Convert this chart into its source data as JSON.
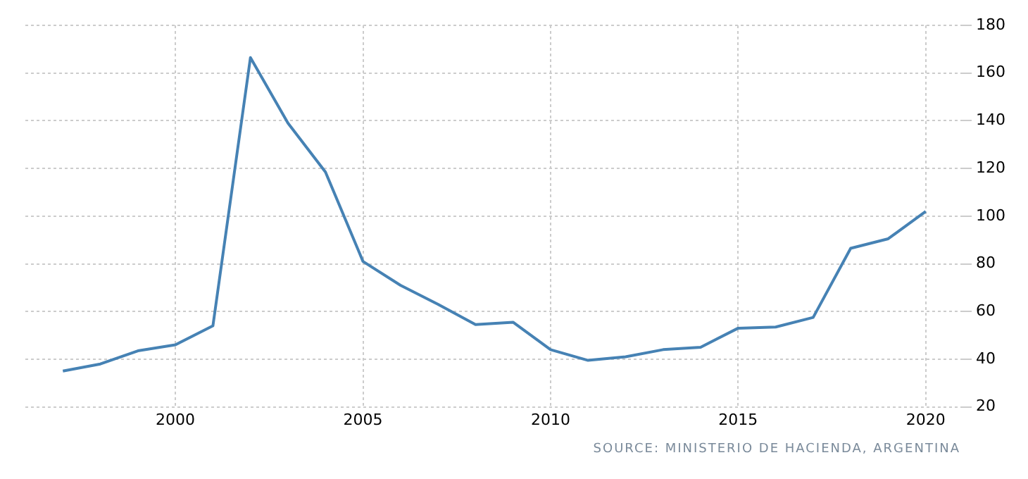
{
  "chart_data": {
    "type": "line",
    "x": [
      1997,
      1998,
      1999,
      2000,
      2001,
      2002,
      2003,
      2004,
      2005,
      2006,
      2007,
      2008,
      2009,
      2010,
      2011,
      2012,
      2013,
      2014,
      2015,
      2016,
      2017,
      2018,
      2019,
      2020
    ],
    "series": [
      {
        "color": "#4682b4",
        "values": [
          35,
          38,
          43.5,
          46,
          54,
          166.5,
          139,
          118.5,
          81,
          71,
          63,
          54.5,
          55.5,
          44,
          39.5,
          41,
          44,
          45,
          53,
          53.5,
          57.5,
          86.5,
          90.5,
          102
        ]
      }
    ],
    "xlim": [
      1996,
      2021
    ],
    "xticks": [
      2000,
      2005,
      2010,
      2015,
      2020
    ],
    "ylim": [
      20,
      180
    ],
    "yticks": [
      20,
      40,
      60,
      80,
      100,
      120,
      140,
      160,
      180
    ],
    "grid": true,
    "legend": false,
    "marker": "none",
    "line_style": "solid",
    "annotations": [
      "SOURCE: MINISTERIO DE HACIENDA, ARGENTINA"
    ]
  }
}
